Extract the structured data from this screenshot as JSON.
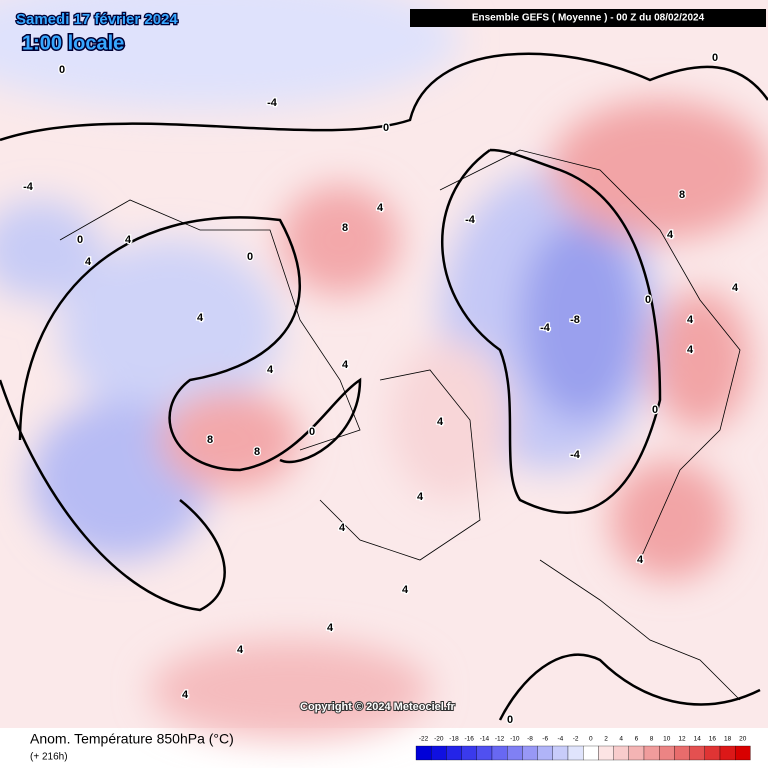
{
  "header": {
    "date": "Samedi 17 février 2024",
    "time": "1:00 locale",
    "model": "Ensemble GEFS  ( Moyenne )  -  00 Z du 08/02/2024"
  },
  "copyright": "Copyright © 2024 Meteociel.fr",
  "footer": {
    "title": "Anom. Température 850hPa (°C)",
    "lead": "(+ 216h)"
  },
  "contour_labels": [
    -4,
    0,
    4,
    -4,
    0,
    4,
    0,
    -4,
    8,
    4,
    4,
    -4,
    -8,
    -4,
    0,
    8,
    4,
    4,
    8,
    4,
    4,
    0,
    4,
    4,
    8,
    4,
    0,
    4,
    4,
    4,
    4,
    0,
    0,
    4,
    4,
    4,
    0
  ],
  "colorbar": {
    "ticks": [
      -22,
      -20,
      -18,
      -16,
      -14,
      -12,
      -10,
      -8,
      -6,
      -4,
      -2,
      0,
      2,
      4,
      6,
      8,
      10,
      12,
      14,
      16,
      18,
      20
    ],
    "colors": [
      "#0000d8",
      "#1010e0",
      "#2424e8",
      "#3a3aec",
      "#5050f0",
      "#6868f2",
      "#8080f4",
      "#9898f6",
      "#b0b4f8",
      "#c8ccfa",
      "#e0e4fc",
      "#ffffff",
      "#fce4e4",
      "#f8cccc",
      "#f4b4b4",
      "#f09c9c",
      "#ec8484",
      "#e86c6c",
      "#e45050",
      "#e03434",
      "#dc1818",
      "#d80000"
    ]
  }
}
